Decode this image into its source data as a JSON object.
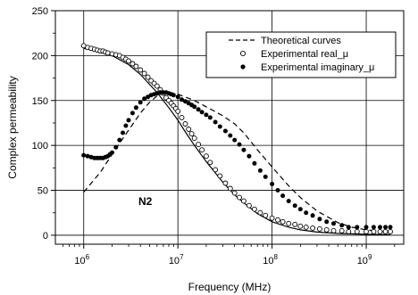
{
  "chart_data": {
    "type": "scatter",
    "xscale": "log",
    "xlim": [
      500000,
      2500000000
    ],
    "ylim": [
      -10,
      250
    ],
    "xlabel": "Frequency (MHz)",
    "ylabel": "Complex permeability",
    "x_ticks": [
      1000000,
      10000000,
      100000000,
      1000000000
    ],
    "x_tick_labels": [
      {
        "base": "10",
        "exp": "6"
      },
      {
        "base": "10",
        "exp": "7"
      },
      {
        "base": "10",
        "exp": "8"
      },
      {
        "base": "10",
        "exp": "9"
      }
    ],
    "y_ticks": [
      0,
      50,
      100,
      150,
      200,
      250
    ],
    "y_tick_labels": [
      "0",
      "50",
      "100",
      "150",
      "200",
      "250"
    ],
    "grid": true,
    "legend_position": "top-right",
    "legend": [
      {
        "label": "Theoretical curves",
        "marker": "dashed-line"
      },
      {
        "label": "Experimental real_μ",
        "marker": "open-circle"
      },
      {
        "label": "Experimental imaginary_μ",
        "marker": "filled-circle"
      }
    ],
    "annotation": "N2",
    "series": [
      {
        "name": "Theoretical curves",
        "kind": "solid-line",
        "x": [
          1000000,
          1500000,
          2000000,
          3000000,
          4000000,
          5000000,
          6000000,
          7000000,
          8000000,
          10000000,
          12000000,
          15000000,
          20000000,
          30000000,
          40000000,
          50000000,
          70000000,
          100000000,
          150000000,
          200000000,
          300000000,
          500000000,
          700000000,
          1000000000,
          1800000000
        ],
        "y": [
          208,
          205,
          200,
          190,
          179,
          168,
          159,
          150,
          142,
          128,
          115,
          100,
          82,
          59,
          45,
          36,
          24,
          15,
          9,
          6,
          3.5,
          2,
          1.5,
          1,
          0.5
        ]
      },
      {
        "name": "Theoretical curves",
        "kind": "dashed-line",
        "x": [
          1000000,
          1500000,
          2000000,
          3000000,
          4000000,
          5000000,
          6000000,
          7000000,
          8000000,
          10000000,
          15000000,
          20000000,
          30000000,
          40000000,
          50000000,
          70000000,
          100000000,
          150000000,
          200000000,
          300000000,
          500000000,
          700000000,
          1000000000,
          1800000000
        ],
        "y": [
          48,
          70,
          90,
          117,
          136,
          148,
          155,
          158,
          159,
          157,
          150,
          143,
          133,
          124,
          114,
          95,
          76,
          55,
          42,
          27,
          14,
          9,
          6,
          3
        ]
      },
      {
        "name": "Experimental real_μ",
        "kind": "open-circle",
        "x": [
          1000000,
          1100000,
          1200000,
          1300000,
          1400000,
          1500000,
          1600000,
          1700000,
          1800000,
          2000000,
          2200000,
          2400000,
          2600000,
          2800000,
          3000000,
          3300000,
          3600000,
          4000000,
          4400000,
          4800000,
          5200000,
          5600000,
          6000000,
          6500000,
          7000000,
          7500000,
          8000000,
          8500000,
          9000000,
          9500000,
          10000000,
          11000000,
          12000000,
          13000000,
          14000000,
          15000000,
          16500000,
          18000000,
          20000000,
          22000000,
          25000000,
          28000000,
          32000000,
          36000000,
          40000000,
          45000000,
          50000000,
          57000000,
          65000000,
          75000000,
          85000000,
          100000000,
          115000000,
          130000000,
          150000000,
          175000000,
          200000000,
          230000000,
          270000000,
          320000000,
          380000000,
          450000000,
          550000000,
          650000000,
          800000000,
          1000000000,
          1200000000,
          1400000000,
          1600000000,
          1800000000
        ],
        "y": [
          211,
          209,
          208,
          207,
          206,
          205,
          205,
          204,
          203,
          202,
          201,
          200,
          198,
          196,
          194,
          191,
          188,
          184,
          180,
          176,
          172,
          169,
          166,
          162,
          158,
          153,
          150,
          147,
          144,
          141,
          138,
          131,
          124,
          118,
          113,
          108,
          101,
          95,
          88,
          81,
          73,
          66,
          58,
          52,
          47,
          42,
          38,
          33,
          29,
          25,
          22,
          19,
          17,
          15,
          13,
          12,
          10,
          9,
          8,
          7,
          6,
          5,
          5,
          4,
          4,
          4,
          4,
          4,
          4,
          4
        ]
      },
      {
        "name": "Experimental imaginary_μ",
        "kind": "filled-circle",
        "x": [
          1000000,
          1100000,
          1200000,
          1300000,
          1400000,
          1500000,
          1600000,
          1700000,
          1800000,
          1900000,
          2000000,
          2200000,
          2400000,
          2600000,
          2800000,
          3000000,
          3300000,
          3600000,
          4000000,
          4400000,
          4800000,
          5200000,
          5600000,
          6000000,
          6500000,
          7000000,
          7500000,
          8000000,
          8500000,
          9000000,
          10000000,
          11000000,
          12000000,
          13000000,
          14000000,
          15000000,
          16500000,
          18000000,
          20000000,
          22000000,
          25000000,
          28000000,
          32000000,
          36000000,
          40000000,
          45000000,
          50000000,
          57000000,
          65000000,
          75000000,
          85000000,
          100000000,
          115000000,
          130000000,
          150000000,
          175000000,
          200000000,
          230000000,
          270000000,
          320000000,
          380000000,
          450000000,
          550000000,
          650000000,
          800000000,
          1000000000,
          1200000000,
          1400000000,
          1600000000,
          1800000000
        ],
        "y": [
          89,
          88,
          87,
          86,
          86,
          86,
          86,
          87,
          88,
          90,
          92,
          98,
          106,
          114,
          122,
          128,
          136,
          142,
          148,
          152,
          154,
          156,
          157,
          158,
          159,
          159,
          159,
          158,
          157,
          156,
          154,
          151,
          149,
          147,
          145,
          143,
          140,
          137,
          134,
          131,
          126,
          121,
          116,
          111,
          106,
          101,
          95,
          88,
          80,
          72,
          65,
          57,
          50,
          44,
          38,
          33,
          29,
          25,
          22,
          18,
          15,
          13,
          11,
          9,
          9,
          9,
          9,
          9,
          9,
          9
        ]
      }
    ]
  }
}
